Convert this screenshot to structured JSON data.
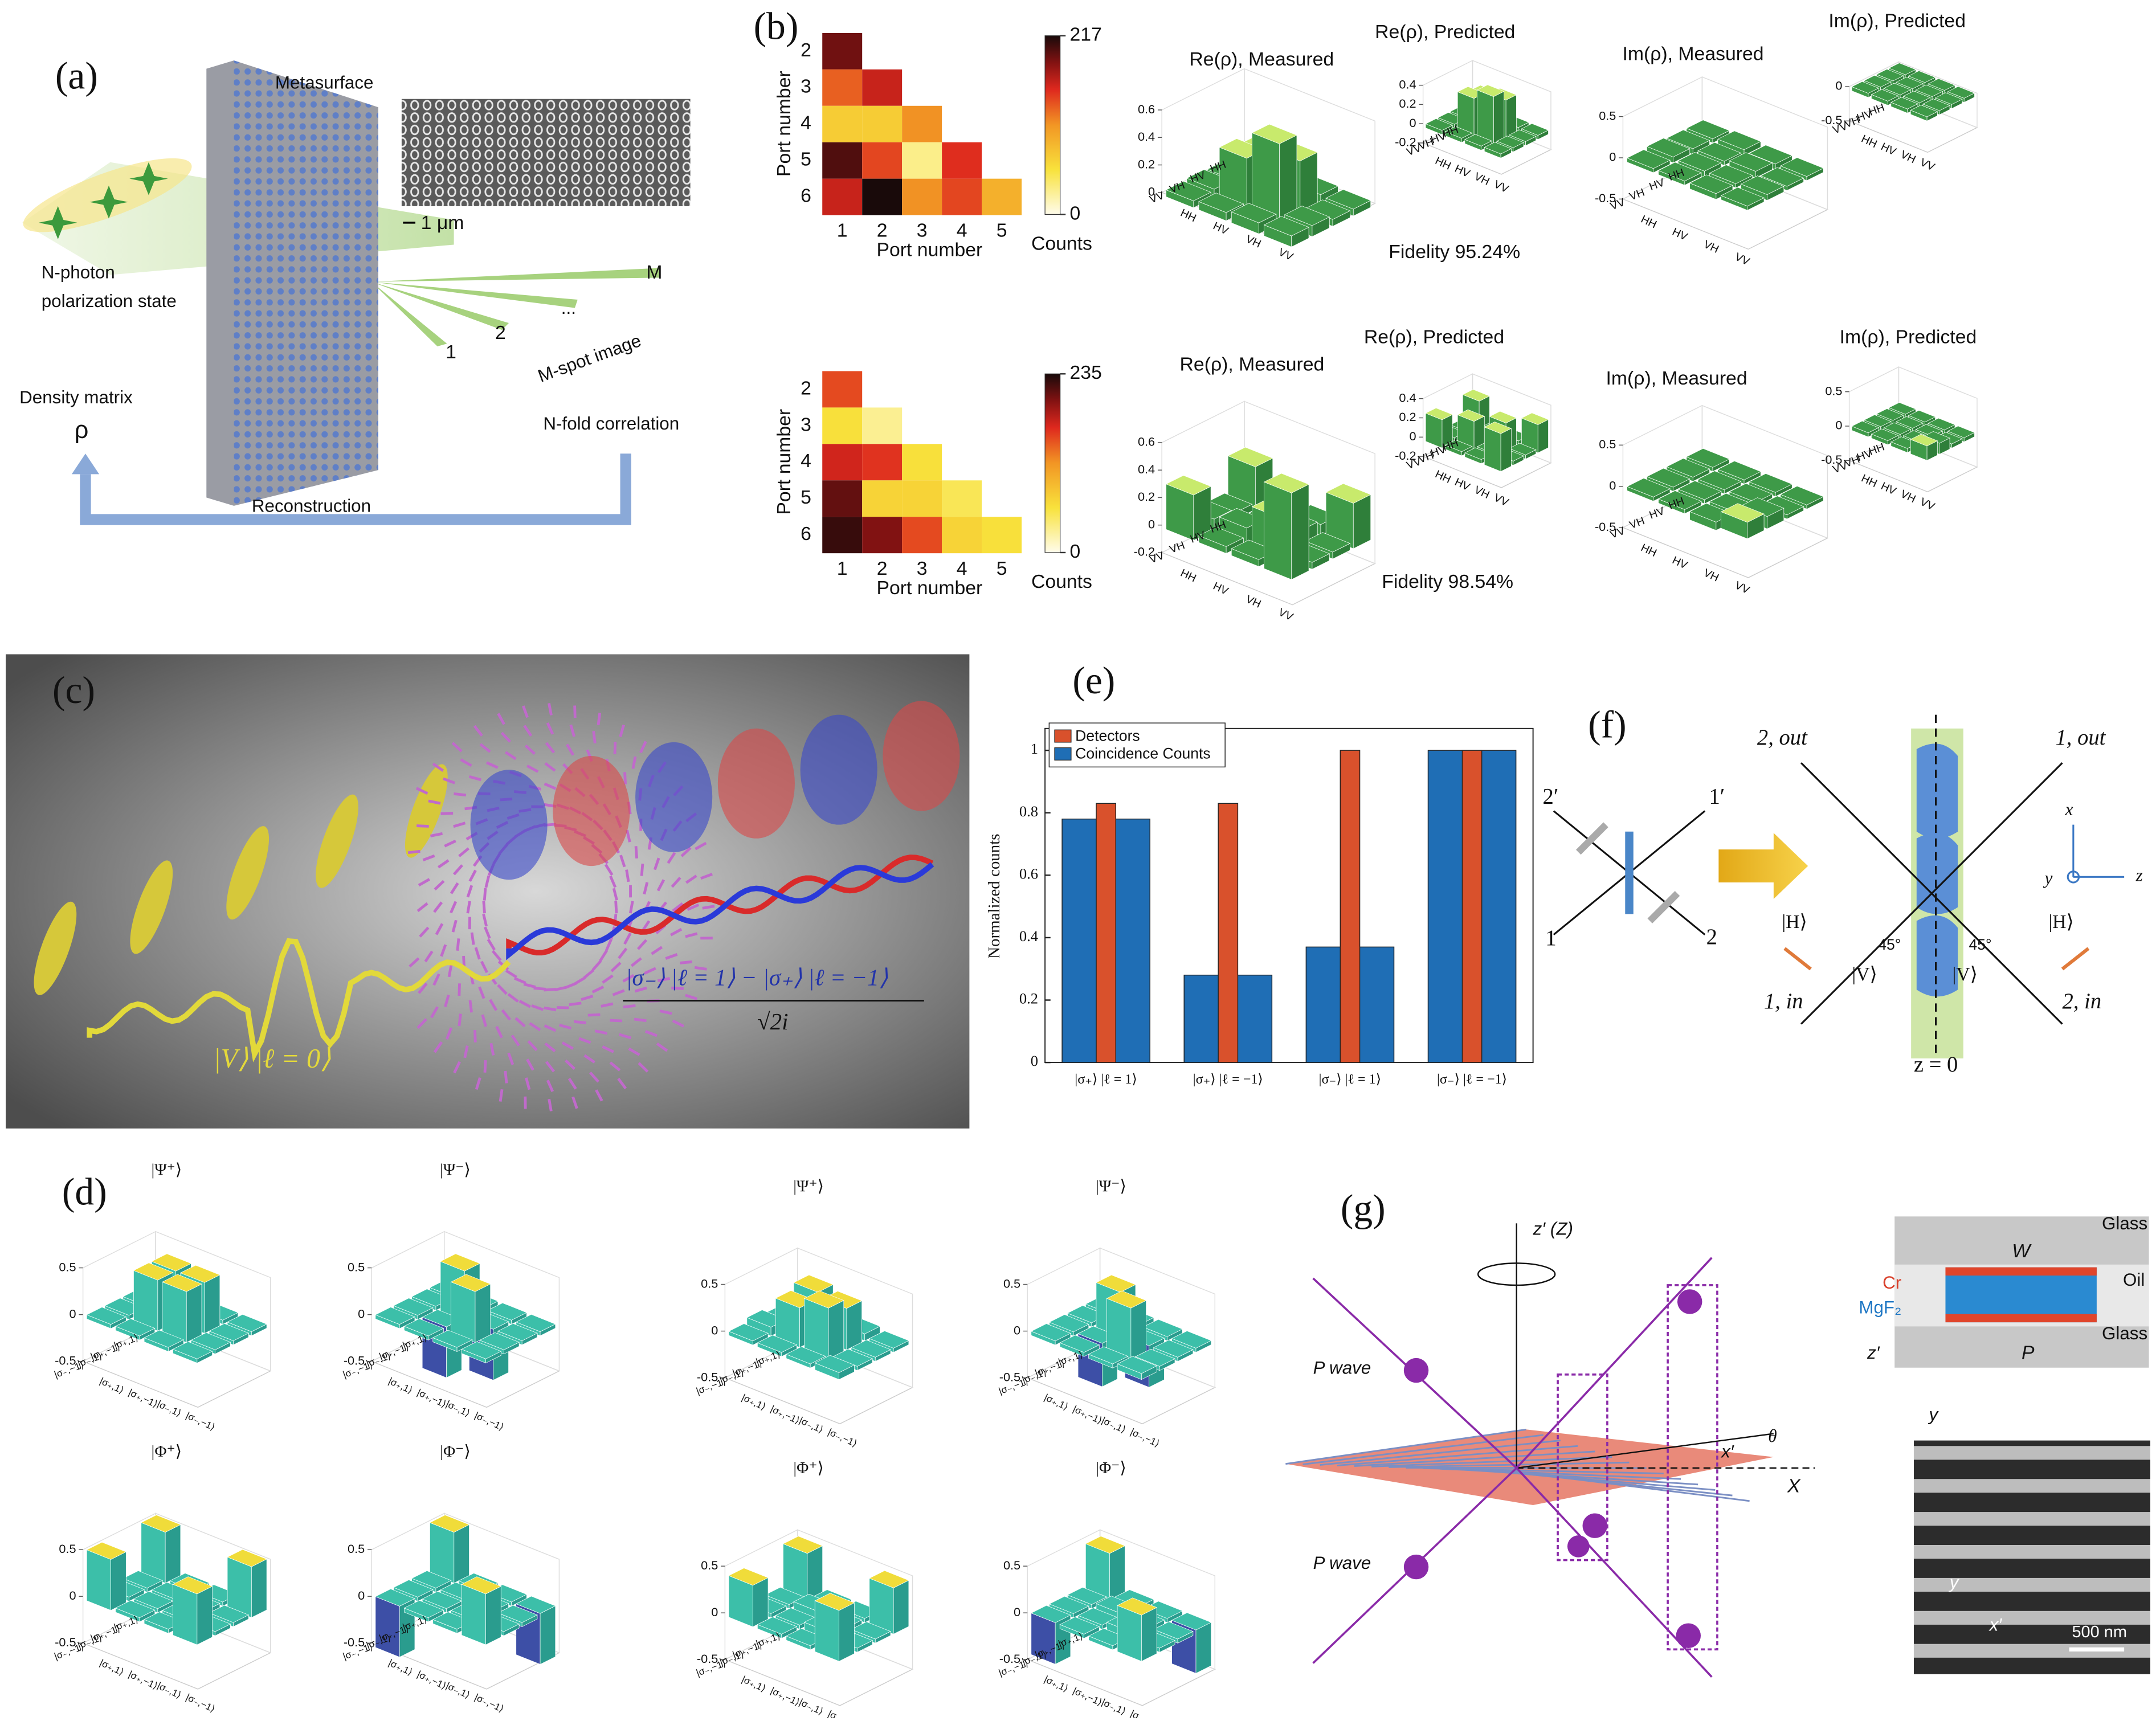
{
  "panels": {
    "a": {
      "label": "(a)",
      "metasurface": "Metasurface",
      "scale_bar": "1 μm",
      "input": [
        "N-photon",
        "polarization state"
      ],
      "spots": [
        "M",
        "2",
        "1",
        "..."
      ],
      "spot_image": "M-spot image",
      "density_matrix": "Density matrix",
      "rho": "ρ",
      "correlation": "N-fold correlation",
      "reconstruction": "Reconstruction"
    },
    "b": {
      "label": "(b)",
      "axis_label": "Port number",
      "colorbar_label": "Counts",
      "heatmaps": [
        {
          "rows": [
            2,
            3,
            4,
            5,
            6
          ],
          "cols": [
            1,
            2,
            3,
            4,
            5
          ],
          "clim": [
            0,
            217
          ],
          "cticks": [
            0,
            217
          ],
          "values": [
            [
              190
            ],
            [
              130,
              160
            ],
            [
              70,
              70,
              110
            ],
            [
              200,
              140,
              30,
              150
            ],
            [
              160,
              217,
              110,
              140,
              90
            ]
          ]
        },
        {
          "rows": [
            2,
            3,
            4,
            5,
            6
          ],
          "cols": [
            1,
            2,
            3,
            4,
            5
          ],
          "clim": [
            0,
            235
          ],
          "cticks": [
            0,
            235
          ],
          "values": [
            [
              150
            ],
            [
              60,
              30
            ],
            [
              170,
              160,
              60
            ],
            [
              210,
              70,
              70,
              50
            ],
            [
              225,
              200,
              150,
              70,
              60
            ]
          ]
        }
      ],
      "basis": [
        "HH",
        "HV",
        "VH",
        "VV"
      ],
      "bar_colors": {
        "top": "#c8ea6c",
        "side": "#3e9a48",
        "side2": "#2f7f3a"
      },
      "plots": [
        {
          "title": "Re(ρ), Measured",
          "zlim": [
            0,
            0.6
          ],
          "zticks": [
            0,
            0.2,
            0.4,
            0.6
          ],
          "values": [
            [
              0.05,
              0.02,
              0.03,
              0.02
            ],
            [
              0.02,
              0.3,
              0.35,
              0.02
            ],
            [
              0.03,
              0.35,
              0.55,
              0.05
            ],
            [
              0.02,
              0.03,
              0.05,
              0.05
            ]
          ]
        },
        {
          "title": "Re(ρ), Predicted",
          "zlim": [
            -0.2,
            0.4
          ],
          "zticks": [
            -0.2,
            0,
            0.2,
            0.4
          ],
          "values": [
            [
              0,
              0,
              0,
              0
            ],
            [
              0,
              0.3,
              0.35,
              0
            ],
            [
              0,
              0.35,
              0.45,
              0
            ],
            [
              0,
              0,
              0,
              0
            ]
          ]
        },
        {
          "title": "Im(ρ), Measured",
          "zlim": [
            -0.5,
            0.5
          ],
          "zticks": [
            -0.5,
            0,
            0.5
          ],
          "values": [
            [
              0,
              0.02,
              -0.02,
              0
            ],
            [
              -0.02,
              0,
              0.03,
              0
            ],
            [
              0.02,
              -0.03,
              0,
              0.02
            ],
            [
              0,
              0,
              -0.02,
              0
            ]
          ]
        },
        {
          "title": "Im(ρ), Predicted",
          "zlim": [
            -0.5,
            0
          ],
          "zticks": [
            -0.5,
            0
          ],
          "values": [
            [
              0,
              0,
              0,
              0
            ],
            [
              0,
              0,
              0,
              0
            ],
            [
              0,
              0,
              0,
              0
            ],
            [
              0,
              0,
              0,
              0
            ]
          ]
        },
        {
          "title": "Re(ρ), Measured",
          "zlim": [
            -0.2,
            0.6
          ],
          "zticks": [
            -0.2,
            0,
            0.2,
            0.4,
            0.6
          ],
          "values": [
            [
              0.28,
              0.02,
              0.05,
              0.3
            ],
            [
              0.02,
              -0.05,
              0.08,
              0.02
            ],
            [
              0.05,
              0.08,
              0.25,
              0.02
            ],
            [
              0.3,
              0.02,
              0.02,
              0.6
            ]
          ]
        },
        {
          "title": "Re(ρ), Predicted",
          "zlim": [
            -0.2,
            0.4
          ],
          "zticks": [
            -0.2,
            0,
            0.2,
            0.4
          ],
          "values": [
            [
              0.25,
              0,
              0,
              0.25
            ],
            [
              0,
              0,
              0.25,
              0
            ],
            [
              0,
              0.25,
              0,
              0
            ],
            [
              0.25,
              0,
              0,
              0.35
            ]
          ]
        },
        {
          "title": "Im(ρ), Measured",
          "zlim": [
            -0.5,
            0.5
          ],
          "zticks": [
            -0.5,
            0,
            0.5
          ],
          "values": [
            [
              0,
              0,
              0,
              0
            ],
            [
              0,
              0,
              0,
              0
            ],
            [
              0,
              0,
              0,
              0.1
            ],
            [
              0,
              0,
              -0.05,
              0.15
            ]
          ]
        },
        {
          "title": "Im(ρ), Predicted",
          "zlim": [
            -0.5,
            0.5
          ],
          "zticks": [
            -0.5,
            0,
            0.5
          ],
          "values": [
            [
              0,
              0,
              0,
              0
            ],
            [
              0,
              0,
              0,
              0
            ],
            [
              0,
              0,
              0,
              0.1
            ],
            [
              0,
              0,
              0,
              0.15
            ]
          ]
        }
      ],
      "fidelity": [
        "Fidelity 95.24%",
        "Fidelity 98.54%"
      ]
    },
    "c": {
      "label": "(c)",
      "state_in": "|V⟩ |ℓ = 0⟩",
      "state_out": "|σ₋⟩ |ℓ = 1⟩ − |σ₊⟩ |ℓ = −1⟩",
      "state_out_norm": "√2i"
    },
    "d": {
      "label": "(d)",
      "zlim": [
        -0.5,
        0.5
      ],
      "zticks": [
        0.5,
        0,
        -0.5
      ],
      "basis": [
        "|σ₊,1⟩",
        "|σ₊,−1⟩",
        "|σ₋,1⟩",
        "|σ₋,−1⟩"
      ],
      "bar_colors": {
        "top": "#f0dc3a",
        "side": "#3cbfa9",
        "side2": "#2a9c8e",
        "negative": "#3d4fa6"
      },
      "plots": [
        {
          "title": "|Ψ⁺⟩",
          "values": [
            [
              0,
              0,
              0,
              0
            ],
            [
              0,
              0.5,
              0.5,
              0
            ],
            [
              0,
              0.5,
              0.5,
              0
            ],
            [
              0,
              0,
              0,
              0
            ]
          ]
        },
        {
          "title": "|Ψ⁻⟩",
          "values": [
            [
              0,
              0,
              0,
              0
            ],
            [
              0,
              0.5,
              -0.5,
              0
            ],
            [
              0,
              -0.5,
              0.5,
              0
            ],
            [
              0,
              0,
              0,
              0
            ]
          ]
        },
        {
          "title": "|Ψ⁺⟩",
          "values": [
            [
              0.02,
              0,
              0.03,
              0
            ],
            [
              0,
              0.45,
              0.4,
              0
            ],
            [
              0.05,
              0.38,
              0.5,
              0
            ],
            [
              0,
              0,
              0,
              0.03
            ]
          ]
        },
        {
          "title": "|Ψ⁻⟩",
          "values": [
            [
              0,
              0,
              0,
              0
            ],
            [
              0,
              0.45,
              -0.4,
              0
            ],
            [
              0,
              -0.42,
              0.5,
              0
            ],
            [
              0,
              0,
              0,
              0.02
            ]
          ]
        },
        {
          "title": "|Φ⁺⟩",
          "values": [
            [
              0.5,
              0,
              0,
              0.5
            ],
            [
              0,
              0,
              0,
              0
            ],
            [
              0,
              0,
              0,
              0
            ],
            [
              0.5,
              0,
              0,
              0.5
            ]
          ]
        },
        {
          "title": "|Φ⁻⟩",
          "values": [
            [
              0.5,
              0,
              0,
              -0.5
            ],
            [
              0,
              0,
              0,
              0
            ],
            [
              0,
              0,
              0,
              0
            ],
            [
              -0.5,
              0,
              0,
              0.5
            ]
          ]
        },
        {
          "title": "|Φ⁺⟩",
          "values": [
            [
              0.45,
              0,
              0,
              0.45
            ],
            [
              0,
              0.05,
              0,
              0
            ],
            [
              0,
              0,
              0.05,
              0
            ],
            [
              0.4,
              0,
              0,
              0.5
            ]
          ]
        },
        {
          "title": "|Φ⁻⟩",
          "values": [
            [
              0.45,
              0,
              0,
              -0.42
            ],
            [
              0,
              0.03,
              0,
              0
            ],
            [
              0,
              0,
              0.05,
              0
            ],
            [
              -0.4,
              0,
              0,
              0.45
            ]
          ]
        }
      ]
    },
    "e": {
      "label": "(e)"
    },
    "f": {
      "label": "(f)",
      "bs_ports": [
        "2′",
        "1′",
        "1",
        "2"
      ],
      "out2": "2, out",
      "out1": "1, out",
      "in1": "1, in",
      "in2": "2, in",
      "axes": [
        "x",
        "y",
        "z"
      ],
      "h": "|H⟩",
      "v": "|V⟩",
      "angle": "45°",
      "plane": "z = 0"
    },
    "g": {
      "label": "(g)",
      "z_axis": "z′ (Z)",
      "p_wave": "P wave",
      "x_prime": "x′",
      "theta": "θ",
      "x_lab": "X",
      "glass": "Glass",
      "w": "W",
      "oil": "Oil",
      "cr": "Cr",
      "mgf2": "MgF₂",
      "p": "P",
      "z_prime": "z′",
      "y": "y",
      "scale": "500 nm"
    }
  },
  "chart_data": {
    "type": "bar",
    "ylabel": "Normalized counts",
    "categories": [
      "|σ₊⟩ |ℓ = 1⟩",
      "|σ₊⟩ |ℓ = −1⟩",
      "|σ₋⟩ |ℓ = 1⟩",
      "|σ₋⟩ |ℓ = −1⟩"
    ],
    "series": [
      {
        "name": "Detectors",
        "color": "#d9512c",
        "values": [
          0.83,
          0.83,
          1.0,
          1.0
        ]
      },
      {
        "name": "Coincidence Counts",
        "color": "#1f6eb5",
        "values": [
          0.78,
          0.28,
          0.37,
          1.0
        ]
      }
    ],
    "ylim": [
      0,
      1.07
    ],
    "yticks": [
      0,
      0.2,
      0.4,
      0.6,
      0.8,
      1
    ],
    "legend": "upper left"
  }
}
